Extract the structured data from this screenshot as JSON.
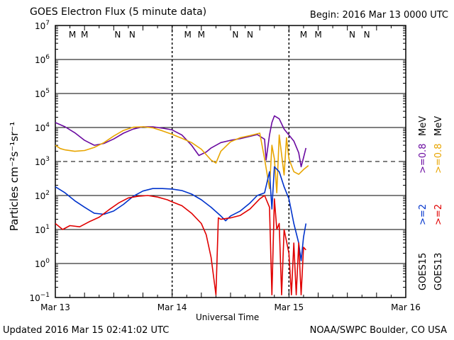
{
  "header": {
    "title": "GOES Electron Flux (5 minute data)",
    "begin": "Begin: 2016 Mar 13 0000 UTC"
  },
  "footer": {
    "updated": "Updated 2016 Mar 15 02:41:02 UTC",
    "credit": "NOAA/SWPC Boulder, CO USA"
  },
  "colors": {
    "ge08_goes13": "#e8a500",
    "ge08_goes15": "#6a0aa0",
    "ge2_goes13": "#e00000",
    "ge2_goes15": "#0033cc",
    "m_marker": "#d00000",
    "n_marker": "#0033cc"
  },
  "chart_data": {
    "type": "line",
    "title": "GOES Electron Flux (5 minute data)",
    "xlabel": "Universal Time",
    "ylabel": "Particles cm⁻²s⁻¹sr⁻¹",
    "x_unit": "hours since 2016 Mar 13 0000 UTC",
    "xlim": [
      0,
      72
    ],
    "ylim_log10": [
      -1,
      7
    ],
    "x_tick_labels": [
      {
        "x": 0,
        "label": "Mar 13"
      },
      {
        "x": 24,
        "label": "Mar 14"
      },
      {
        "x": 48,
        "label": "Mar 15"
      },
      {
        "x": 72,
        "label": "Mar 16"
      }
    ],
    "y_tick_labels": [
      {
        "exp": 7,
        "label": "10",
        "sup": "7"
      },
      {
        "exp": 6,
        "label": "10",
        "sup": "6"
      },
      {
        "exp": 5,
        "label": "10",
        "sup": "5"
      },
      {
        "exp": 4,
        "label": "10",
        "sup": "4"
      },
      {
        "exp": 3,
        "label": "10",
        "sup": "3"
      },
      {
        "exp": 2,
        "label": "10",
        "sup": "2"
      },
      {
        "exp": 1,
        "label": "10",
        "sup": "1"
      },
      {
        "exp": 0,
        "label": "10",
        "sup": "0"
      },
      {
        "exp": -1,
        "label": "10",
        "sup": "−1"
      }
    ],
    "dashed_reference_log10": 3,
    "day_boundaries": [
      24,
      48
    ],
    "markers": [
      {
        "x": 3.5,
        "label": "M",
        "kind": "M"
      },
      {
        "x": 6.0,
        "label": "M",
        "kind": "M"
      },
      {
        "x": 12.8,
        "label": "N",
        "kind": "N"
      },
      {
        "x": 15.8,
        "label": "N",
        "kind": "N"
      },
      {
        "x": 27.2,
        "label": "M",
        "kind": "M"
      },
      {
        "x": 30.0,
        "label": "M",
        "kind": "M"
      },
      {
        "x": 37.0,
        "label": "N",
        "kind": "N"
      },
      {
        "x": 40.0,
        "label": "N",
        "kind": "N"
      },
      {
        "x": 51.0,
        "label": "M",
        "kind": "M"
      },
      {
        "x": 54.0,
        "label": "M",
        "kind": "M"
      },
      {
        "x": 61.0,
        "label": "N",
        "kind": "N"
      },
      {
        "x": 64.0,
        "label": "N",
        "kind": "N"
      }
    ],
    "legend": {
      "goes15": "GOES15",
      "goes13": "GOES13",
      "ge2": ">=2",
      "ge08": ">=0.8",
      "mev": "MeV"
    },
    "series": [
      {
        "name": "GOES15 >=0.8 MeV",
        "color_key": "ge08_goes15",
        "points": [
          [
            0,
            14000
          ],
          [
            2,
            10500
          ],
          [
            4,
            7000
          ],
          [
            6,
            4200
          ],
          [
            8,
            3000
          ],
          [
            10,
            3400
          ],
          [
            12,
            4600
          ],
          [
            14,
            6800
          ],
          [
            16,
            9000
          ],
          [
            18,
            10500
          ],
          [
            20,
            10500
          ],
          [
            22,
            9600
          ],
          [
            24,
            8500
          ],
          [
            26,
            6000
          ],
          [
            28,
            3000
          ],
          [
            29.5,
            1500
          ],
          [
            31,
            1900
          ],
          [
            32,
            2500
          ],
          [
            34,
            3600
          ],
          [
            36,
            4200
          ],
          [
            38,
            4700
          ],
          [
            40,
            5500
          ],
          [
            41.5,
            6200
          ],
          [
            43,
            4500
          ],
          [
            43.3,
            1100
          ],
          [
            44,
            6000
          ],
          [
            44.5,
            14000
          ],
          [
            45,
            22000
          ],
          [
            46,
            18000
          ],
          [
            47,
            9000
          ],
          [
            48,
            6000
          ],
          [
            49,
            4000
          ],
          [
            50,
            1800
          ],
          [
            50.5,
            700
          ],
          [
            51,
            1300
          ],
          [
            51.5,
            2500
          ]
        ]
      },
      {
        "name": "GOES13 >=0.8 MeV",
        "color_key": "ge08_goes13",
        "points": [
          [
            0,
            3000
          ],
          [
            1,
            2400
          ],
          [
            2,
            2200
          ],
          [
            4,
            2000
          ],
          [
            6,
            2100
          ],
          [
            8,
            2600
          ],
          [
            10,
            3600
          ],
          [
            12,
            5600
          ],
          [
            14,
            8200
          ],
          [
            16,
            10200
          ],
          [
            18,
            10500
          ],
          [
            20,
            9800
          ],
          [
            22,
            8000
          ],
          [
            24,
            6300
          ],
          [
            26,
            4800
          ],
          [
            28,
            3600
          ],
          [
            30,
            2300
          ],
          [
            32,
            1100
          ],
          [
            33,
            900
          ],
          [
            34,
            2000
          ],
          [
            36,
            3800
          ],
          [
            38,
            5000
          ],
          [
            40,
            5800
          ],
          [
            42,
            6800
          ],
          [
            43,
            1200
          ],
          [
            44,
            160
          ],
          [
            44.5,
            3000
          ],
          [
            45,
            1200
          ],
          [
            45.5,
            120
          ],
          [
            46,
            6000
          ],
          [
            47,
            400
          ],
          [
            47.5,
            5000
          ],
          [
            48,
            1200
          ],
          [
            49,
            500
          ],
          [
            50,
            420
          ],
          [
            51,
            580
          ],
          [
            52,
            760
          ]
        ]
      },
      {
        "name": "GOES15 >=2 MeV",
        "color_key": "ge2_goes15",
        "points": [
          [
            0,
            180
          ],
          [
            2,
            120
          ],
          [
            4,
            70
          ],
          [
            6,
            45
          ],
          [
            8,
            30
          ],
          [
            10,
            28
          ],
          [
            12,
            35
          ],
          [
            14,
            55
          ],
          [
            16,
            95
          ],
          [
            18,
            135
          ],
          [
            20,
            160
          ],
          [
            22,
            160
          ],
          [
            24,
            155
          ],
          [
            26,
            140
          ],
          [
            28,
            110
          ],
          [
            30,
            75
          ],
          [
            32,
            45
          ],
          [
            34,
            25
          ],
          [
            35,
            18
          ],
          [
            36,
            25
          ],
          [
            38,
            35
          ],
          [
            40,
            60
          ],
          [
            41.5,
            100
          ],
          [
            43,
            120
          ],
          [
            44,
            500
          ],
          [
            44.5,
            40
          ],
          [
            45,
            700
          ],
          [
            46,
            500
          ],
          [
            47,
            180
          ],
          [
            48,
            80
          ],
          [
            49,
            15
          ],
          [
            50,
            4
          ],
          [
            50.5,
            1.2
          ],
          [
            51,
            6
          ],
          [
            51.5,
            15
          ]
        ]
      },
      {
        "name": "GOES13 >=2 MeV",
        "color_key": "ge2_goes13",
        "points": [
          [
            0,
            15
          ],
          [
            1.5,
            10
          ],
          [
            3,
            13
          ],
          [
            5,
            12
          ],
          [
            7,
            17
          ],
          [
            9,
            23
          ],
          [
            11,
            38
          ],
          [
            13,
            60
          ],
          [
            15,
            85
          ],
          [
            17,
            95
          ],
          [
            19,
            100
          ],
          [
            21,
            90
          ],
          [
            23,
            75
          ],
          [
            24,
            65
          ],
          [
            26,
            50
          ],
          [
            28,
            30
          ],
          [
            30,
            15
          ],
          [
            31,
            7
          ],
          [
            32,
            1.5
          ],
          [
            33,
            0.12
          ],
          [
            33.5,
            22
          ],
          [
            34,
            20
          ],
          [
            36,
            22
          ],
          [
            38,
            26
          ],
          [
            40,
            40
          ],
          [
            42,
            80
          ],
          [
            43,
            100
          ],
          [
            44,
            45
          ],
          [
            44.5,
            0.12
          ],
          [
            45,
            80
          ],
          [
            45.5,
            10
          ],
          [
            46,
            15
          ],
          [
            46.5,
            0.12
          ],
          [
            47,
            10
          ],
          [
            48,
            2
          ],
          [
            48.5,
            0.12
          ],
          [
            49,
            4
          ],
          [
            49.5,
            0.12
          ],
          [
            50,
            4
          ],
          [
            50.5,
            0.12
          ],
          [
            51,
            3
          ],
          [
            51.5,
            2.5
          ]
        ]
      }
    ]
  }
}
